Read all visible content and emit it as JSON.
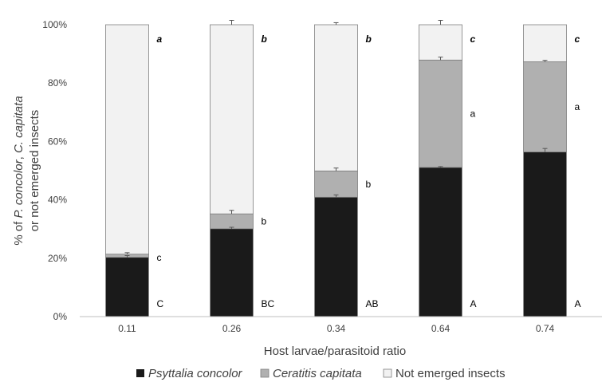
{
  "chart_data": {
    "type": "bar",
    "stacked": true,
    "xlabel": "Host larvae/parasitoid ratio",
    "ylabel": "% of P. concolor, C. capitata or not emerged insects",
    "ylabel_parts": [
      {
        "text": "% of ",
        "italic": false
      },
      {
        "text": "P. concolor",
        "italic": true
      },
      {
        "text": ", ",
        "italic": false
      },
      {
        "text": "C. capitata",
        "italic": true
      }
    ],
    "ylabel_line2": "or not emerged insects",
    "categories": [
      "0.11",
      "0.26",
      "0.34",
      "0.64",
      "0.74"
    ],
    "ylim": [
      0,
      100
    ],
    "yticks": [
      "0%",
      "20%",
      "40%",
      "60%",
      "80%",
      "100%"
    ],
    "grid": false,
    "legend_position": "bottom",
    "series": [
      {
        "name": "Psyttalia concolor",
        "italic": true,
        "color": "#1a1a1a",
        "values": [
          20.3,
          30.1,
          40.9,
          51.1,
          56.4
        ],
        "error": [
          0.6,
          0.5,
          0.8,
          0.3,
          1.2
        ]
      },
      {
        "name": "Ceratitis capitata",
        "italic": true,
        "color": "#b0b0b0",
        "values": [
          1.1,
          5.1,
          9.0,
          36.8,
          30.9
        ],
        "error": [
          0.5,
          1.2,
          1.0,
          1.0,
          0.5
        ]
      },
      {
        "name": "Not emerged insects",
        "italic": false,
        "color": "#f2f2f2",
        "values": [
          78.6,
          64.8,
          50.1,
          12.1,
          12.7
        ],
        "error": [
          0,
          1.5,
          0.7,
          1.5,
          0
        ]
      }
    ],
    "letters_bottom": [
      "C",
      "BC",
      "AB",
      "A",
      "A"
    ],
    "letters_middle": [
      "c",
      "b",
      "b",
      "a",
      "a"
    ],
    "letters_top": [
      "a",
      "b",
      "b",
      "c",
      "c"
    ]
  }
}
